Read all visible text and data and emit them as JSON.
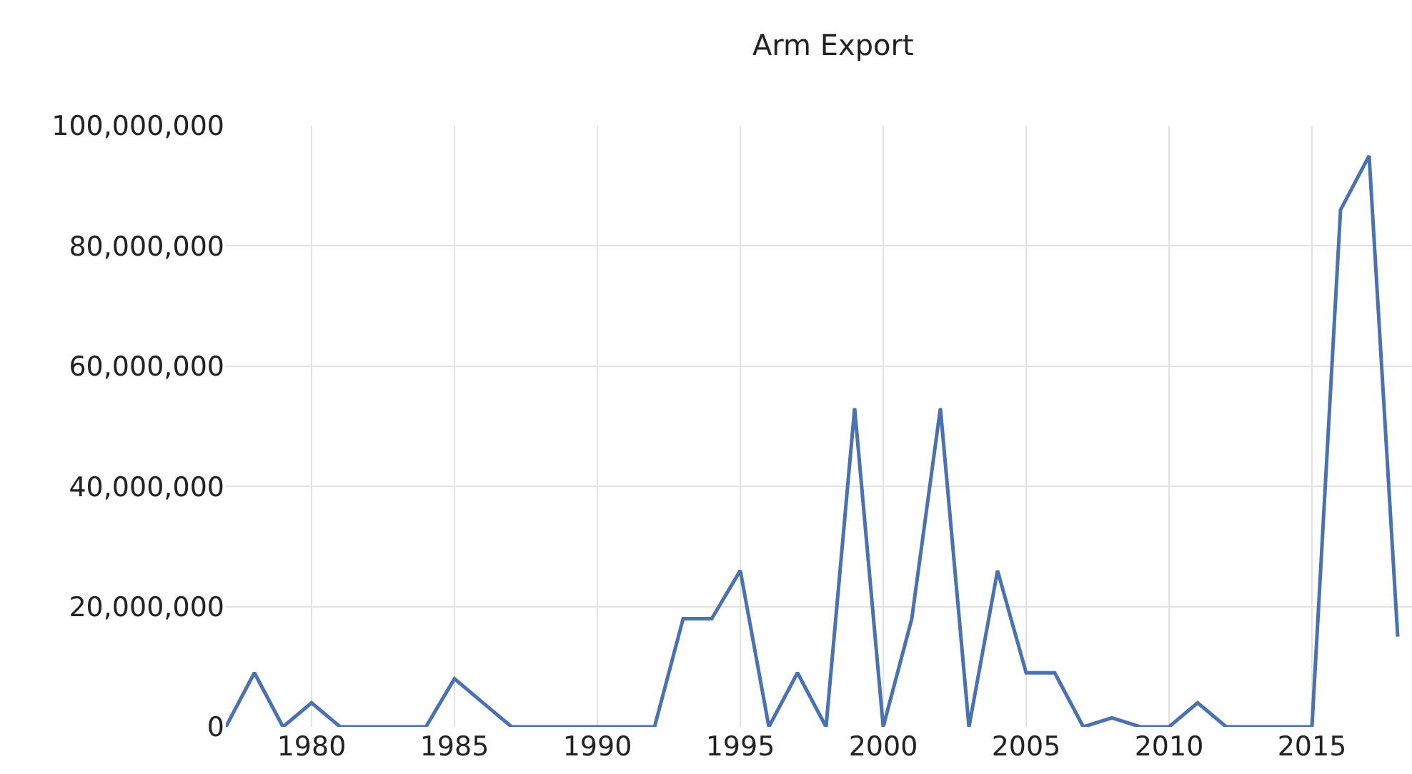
{
  "chart_data": {
    "type": "line",
    "title": "Arm Export",
    "x": [
      1977,
      1978,
      1979,
      1980,
      1981,
      1982,
      1983,
      1984,
      1985,
      1986,
      1987,
      1988,
      1989,
      1990,
      1991,
      1992,
      1993,
      1994,
      1995,
      1996,
      1997,
      1998,
      1999,
      2000,
      2001,
      2002,
      2003,
      2004,
      2005,
      2006,
      2007,
      2008,
      2009,
      2010,
      2011,
      2012,
      2013,
      2014,
      2015,
      2016,
      2017,
      2018
    ],
    "series": [
      {
        "color": "#4a72b0",
        "values": [
          0,
          9000000,
          0,
          4000000,
          0,
          0,
          0,
          0,
          8000000,
          4000000,
          0,
          0,
          0,
          0,
          0,
          0,
          18000000,
          18000000,
          26000000,
          0,
          9000000,
          0,
          53000000,
          0,
          18000000,
          53000000,
          0,
          26000000,
          9000000,
          9000000,
          0,
          1500000,
          0,
          0,
          4000000,
          0,
          0,
          0,
          0,
          86000000,
          95000000,
          15000000
        ]
      }
    ],
    "xlim": [
      1977,
      2018.5
    ],
    "xticks": [
      1980,
      1985,
      1990,
      1995,
      2000,
      2005,
      2010,
      2015
    ],
    "ylim": [
      0,
      100000000
    ],
    "yticks": [
      {
        "value": 0,
        "label": "0"
      },
      {
        "value": 20000000,
        "label": "20,000,000"
      },
      {
        "value": 40000000,
        "label": "40,000,000"
      },
      {
        "value": 60000000,
        "label": "60,000,000"
      },
      {
        "value": 80000000,
        "label": "80,000,000"
      },
      {
        "value": 100000000,
        "label": "100,000,000"
      }
    ],
    "grid": true,
    "legend": false,
    "marker": "none",
    "line_style": "solid"
  }
}
